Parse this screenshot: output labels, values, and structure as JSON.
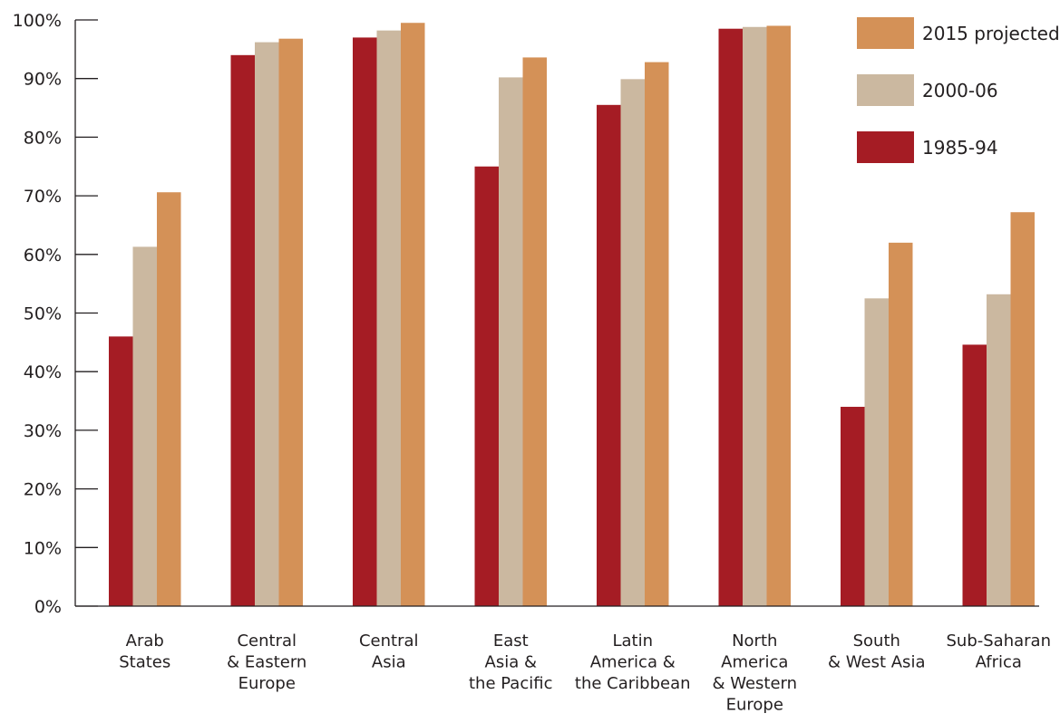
{
  "chart_data": {
    "type": "bar",
    "title": "",
    "xlabel": "",
    "ylabel": "",
    "ylim": [
      0,
      100
    ],
    "y_ticks": [
      "0%",
      "10%",
      "20%",
      "30%",
      "40%",
      "50%",
      "60%",
      "70%",
      "80%",
      "90%",
      "100%"
    ],
    "grid": false,
    "legend_position": "top-right",
    "categories": [
      [
        "Arab",
        "States"
      ],
      [
        "Central",
        "& Eastern",
        "Europe"
      ],
      [
        "Central",
        "Asia"
      ],
      [
        "East",
        "Asia &",
        "the Pacific"
      ],
      [
        "Latin",
        "America &",
        "the Caribbean"
      ],
      [
        "North",
        "America",
        "& Western",
        "Europe"
      ],
      [
        "South",
        "& West Asia"
      ],
      [
        "Sub-Saharan",
        "Africa"
      ]
    ],
    "series": [
      {
        "name": "1985-94",
        "color": "#a51c24",
        "values": [
          46,
          94,
          97,
          75,
          85.5,
          98.5,
          34,
          44.6
        ]
      },
      {
        "name": "2000-06",
        "color": "#cbb8a0",
        "values": [
          61.3,
          96.2,
          98.2,
          90.2,
          89.9,
          98.8,
          52.5,
          53.2
        ]
      },
      {
        "name": "2015 projected",
        "color": "#d49157",
        "values": [
          70.6,
          96.8,
          99.5,
          93.6,
          92.8,
          99,
          62,
          67.2
        ]
      }
    ],
    "legend_order": [
      "2015 projected",
      "2000-06",
      "1985-94"
    ]
  }
}
